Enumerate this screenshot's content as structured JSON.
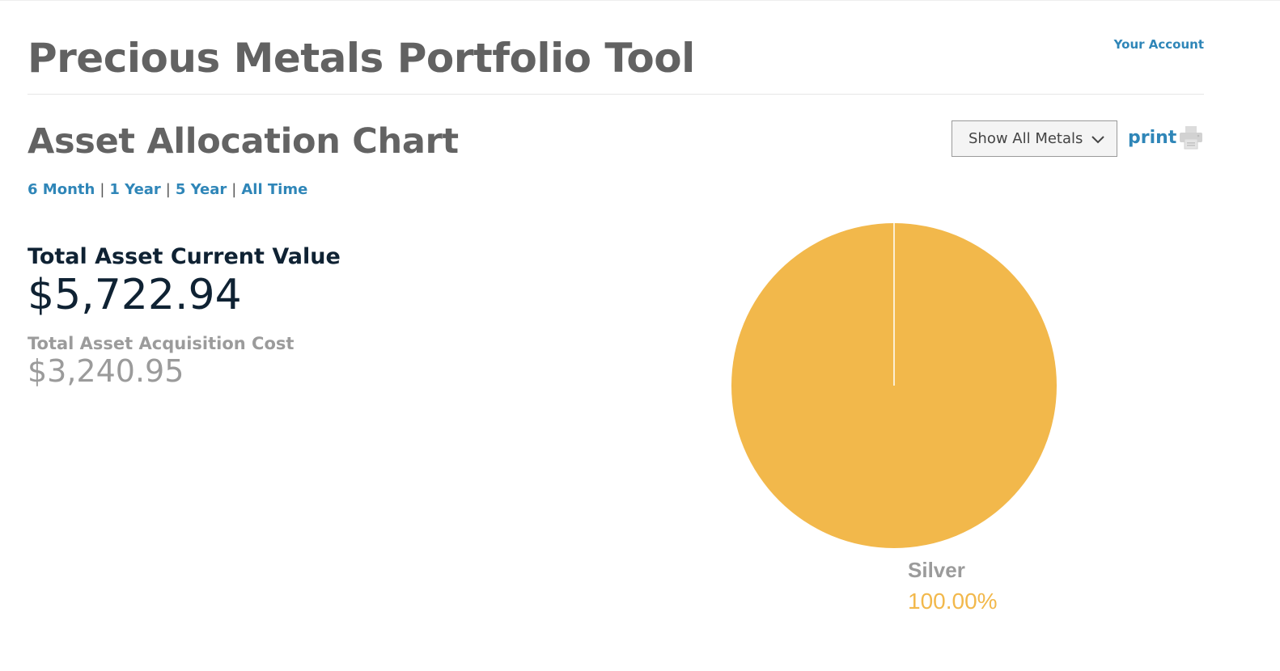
{
  "header": {
    "title": "Precious Metals Portfolio Tool",
    "account_link": "Your Account"
  },
  "section": {
    "title": "Asset Allocation Chart",
    "metal_filter": {
      "selected": "Show All Metals"
    },
    "print_label": "print"
  },
  "time_ranges": [
    {
      "label": "6 Month"
    },
    {
      "label": "1 Year"
    },
    {
      "label": "5 Year"
    },
    {
      "label": "All Time"
    }
  ],
  "separator": "|",
  "summary": {
    "current_label": "Total Asset Current Value",
    "current_value": "$5,722.94",
    "cost_label": "Total Asset Acquisition Cost",
    "cost_value": "$3,240.95"
  },
  "icons": {
    "print": "printer-icon",
    "select": "chevron-down-icon"
  },
  "colors": {
    "accent_link": "#2f86b8",
    "silver_slice": "#f2b84b",
    "title_gray": "#626262"
  },
  "chart_data": {
    "type": "pie",
    "slices": [
      {
        "label": "Silver",
        "value": 100.0,
        "display": "100.00%",
        "color": "#f2b84b"
      }
    ]
  }
}
